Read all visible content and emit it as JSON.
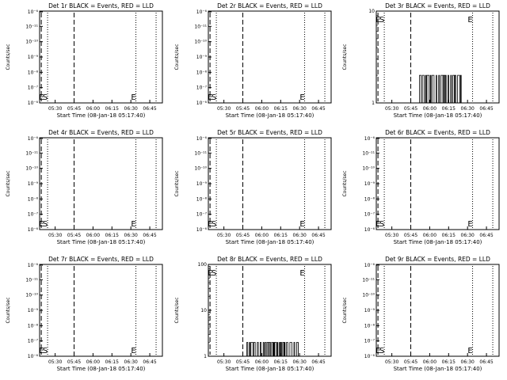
{
  "chart_data": [
    {
      "type": "line",
      "title": "Det 1r BLACK = Events, RED = LLD",
      "xlabel": "Start Time (08-Jan-18 05:17:40)",
      "ylabel": "Counts/sec",
      "scale": "log",
      "ylim": [
        1e-06,
        0.0001
      ],
      "ytick_labels": [
        "10⁻⁶",
        "10⁻⁷",
        "10⁻⁸",
        "10⁻⁹",
        "10⁻¹⁰",
        "10⁻¹¹",
        "10⁻⁶"
      ],
      "xtick_labels": [
        "05:30",
        "05:45",
        "06:00",
        "06:15",
        "06:30",
        "06:45"
      ],
      "markers": [
        {
          "label": "E",
          "pos": "top-left",
          "time": "05:19"
        },
        {
          "label": "S",
          "pos": "bottom",
          "time": "05:22"
        },
        {
          "label": "E",
          "pos": "bottom",
          "time": "06:32"
        }
      ],
      "dashed_lines": [
        "05:19",
        "05:45"
      ],
      "dotted_lines": [
        "05:24",
        "06:34"
      ],
      "series": []
    },
    {
      "type": "line",
      "title": "Det 2r BLACK = Events, RED = LLD",
      "xlabel": "Start Time (08-Jan-18 05:17:40)",
      "ylabel": "Counts/sec",
      "scale": "log",
      "ylim": [
        1e-06,
        0.0001
      ],
      "ytick_labels": [
        "10⁻⁶",
        "10⁻⁷",
        "10⁻⁸",
        "10⁻⁹",
        "10⁻¹⁰",
        "10⁻¹¹",
        "10⁻⁶"
      ],
      "xtick_labels": [
        "05:30",
        "05:45",
        "06:00",
        "06:15",
        "06:30",
        "06:45"
      ],
      "markers": [
        {
          "label": "E",
          "pos": "top-left",
          "time": "05:19"
        },
        {
          "label": "S",
          "pos": "bottom",
          "time": "05:22"
        },
        {
          "label": "E",
          "pos": "bottom",
          "time": "06:32"
        }
      ],
      "dashed_lines": [
        "05:19",
        "05:45"
      ],
      "dotted_lines": [
        "05:24",
        "06:34"
      ],
      "series": []
    },
    {
      "type": "line",
      "title": "Det 3r BLACK = Events, RED = LLD",
      "xlabel": "Start Time (08-Jan-18 05:17:40)",
      "ylabel": "Counts/sec",
      "scale": "log",
      "ylim": [
        1,
        10
      ],
      "ytick_labels": [
        "1",
        "10"
      ],
      "xtick_labels": [
        "05:30",
        "05:45",
        "06:00",
        "06:15",
        "06:30",
        "06:45"
      ],
      "markers": [
        {
          "label": "E",
          "pos": "top-left",
          "time": "05:19"
        },
        {
          "label": "S",
          "pos": "top",
          "time": "05:22"
        },
        {
          "label": "E",
          "pos": "top",
          "time": "06:32"
        }
      ],
      "dashed_lines": [
        "05:19",
        "05:45"
      ],
      "dotted_lines": [
        "05:24",
        "06:34"
      ],
      "series": [
        {
          "values": "toggles between 1 and 2 counts/sec",
          "x_range": [
            "05:51",
            "06:25"
          ]
        }
      ]
    },
    {
      "type": "line",
      "title": "Det 4r BLACK = Events, RED = LLD",
      "xlabel": "Start Time (08-Jan-18 05:17:40)",
      "ylabel": "Counts/sec",
      "scale": "log",
      "ylim": [
        1e-06,
        0.0001
      ],
      "ytick_labels": [
        "10⁻⁶",
        "10⁻⁷",
        "10⁻⁸",
        "10⁻⁹",
        "10⁻¹⁰",
        "10⁻¹¹",
        "10⁻⁶"
      ],
      "xtick_labels": [
        "05:30",
        "05:45",
        "06:00",
        "06:15",
        "06:30",
        "06:45"
      ],
      "markers": [
        {
          "label": "E",
          "pos": "top-left",
          "time": "05:19"
        },
        {
          "label": "S",
          "pos": "bottom",
          "time": "05:22"
        },
        {
          "label": "E",
          "pos": "bottom",
          "time": "06:32"
        }
      ],
      "dashed_lines": [
        "05:19",
        "05:45"
      ],
      "dotted_lines": [
        "05:24",
        "06:34"
      ],
      "series": []
    },
    {
      "type": "line",
      "title": "Det 5r BLACK = Events, RED = LLD",
      "xlabel": "Start Time (08-Jan-18 05:17:40)",
      "ylabel": "Counts/sec",
      "scale": "log",
      "ylim": [
        1e-06,
        0.0001
      ],
      "ytick_labels": [
        "10⁻⁶",
        "10⁻⁷",
        "10⁻⁸",
        "10⁻⁹",
        "10⁻¹⁰",
        "10⁻¹¹",
        "10⁻⁶"
      ],
      "xtick_labels": [
        "05:30",
        "05:45",
        "06:00",
        "06:15",
        "06:30",
        "06:45"
      ],
      "markers": [
        {
          "label": "E",
          "pos": "top-left",
          "time": "05:19"
        },
        {
          "label": "S",
          "pos": "bottom",
          "time": "05:22"
        },
        {
          "label": "E",
          "pos": "bottom",
          "time": "06:32"
        }
      ],
      "dashed_lines": [
        "05:19",
        "05:45"
      ],
      "dotted_lines": [
        "05:24",
        "06:34"
      ],
      "series": []
    },
    {
      "type": "line",
      "title": "Det 6r BLACK = Events, RED = LLD",
      "xlabel": "Start Time (08-Jan-18 05:17:40)",
      "ylabel": "Counts/sec",
      "scale": "log",
      "ylim": [
        1e-06,
        0.0001
      ],
      "ytick_labels": [
        "10⁻⁶",
        "10⁻⁷",
        "10⁻⁸",
        "10⁻⁹",
        "10⁻¹⁰",
        "10⁻¹¹",
        "10⁻⁶"
      ],
      "xtick_labels": [
        "05:30",
        "05:45",
        "06:00",
        "06:15",
        "06:30",
        "06:45"
      ],
      "markers": [
        {
          "label": "E",
          "pos": "top-left",
          "time": "05:19"
        },
        {
          "label": "S",
          "pos": "bottom",
          "time": "05:22"
        },
        {
          "label": "E",
          "pos": "bottom",
          "time": "06:32"
        }
      ],
      "dashed_lines": [
        "05:19",
        "05:45"
      ],
      "dotted_lines": [
        "05:24",
        "06:34"
      ],
      "series": []
    },
    {
      "type": "line",
      "title": "Det 7r BLACK = Events, RED = LLD",
      "xlabel": "Start Time (08-Jan-18 05:17:40)",
      "ylabel": "Counts/sec",
      "scale": "log",
      "ylim": [
        1e-06,
        0.0001
      ],
      "ytick_labels": [
        "10⁻⁶",
        "10⁻⁷",
        "10⁻⁸",
        "10⁻⁹",
        "10⁻¹⁰",
        "10⁻¹¹",
        "10⁻⁶"
      ],
      "xtick_labels": [
        "05:30",
        "05:45",
        "06:00",
        "06:15",
        "06:30",
        "06:45"
      ],
      "markers": [
        {
          "label": "E",
          "pos": "top-left",
          "time": "05:19"
        },
        {
          "label": "S",
          "pos": "bottom",
          "time": "05:22"
        },
        {
          "label": "E",
          "pos": "bottom",
          "time": "06:32"
        }
      ],
      "dashed_lines": [
        "05:19",
        "05:45"
      ],
      "dotted_lines": [
        "05:24",
        "06:34"
      ],
      "series": []
    },
    {
      "type": "line",
      "title": "Det 8r BLACK = Events, RED = LLD",
      "xlabel": "Start Time (08-Jan-18 05:17:40)",
      "ylabel": "Counts/sec",
      "scale": "log",
      "ylim": [
        1,
        100
      ],
      "ytick_labels": [
        "1",
        "10",
        "100"
      ],
      "xtick_labels": [
        "05:30",
        "05:45",
        "06:00",
        "06:15",
        "06:30",
        "06:45"
      ],
      "markers": [
        {
          "label": "E",
          "pos": "top-left",
          "time": "05:19"
        },
        {
          "label": "S",
          "pos": "top",
          "time": "05:22"
        },
        {
          "label": "E",
          "pos": "top",
          "time": "06:32"
        }
      ],
      "dashed_lines": [
        "05:19",
        "05:45"
      ],
      "dotted_lines": [
        "05:24",
        "06:34"
      ],
      "series": [
        {
          "values": "toggles between 1 and 2 counts/sec",
          "x_range": [
            "05:47",
            "06:29"
          ]
        }
      ]
    },
    {
      "type": "line",
      "title": "Det 9r BLACK = Events, RED = LLD",
      "xlabel": "Start Time (08-Jan-18 05:17:40)",
      "ylabel": "Counts/sec",
      "scale": "log",
      "ylim": [
        1e-06,
        0.0001
      ],
      "ytick_labels": [
        "10⁻⁶",
        "10⁻⁷",
        "10⁻⁸",
        "10⁻⁹",
        "10⁻¹⁰",
        "10⁻¹¹",
        "10⁻⁶"
      ],
      "xtick_labels": [
        "05:30",
        "05:45",
        "06:00",
        "06:15",
        "06:30",
        "06:45"
      ],
      "markers": [
        {
          "label": "E",
          "pos": "top-left",
          "time": "05:19"
        },
        {
          "label": "S",
          "pos": "bottom",
          "time": "05:22"
        },
        {
          "label": "E",
          "pos": "bottom",
          "time": "06:32"
        }
      ],
      "dashed_lines": [
        "05:19",
        "05:45"
      ],
      "dotted_lines": [
        "05:24",
        "06:34"
      ],
      "series": []
    }
  ]
}
